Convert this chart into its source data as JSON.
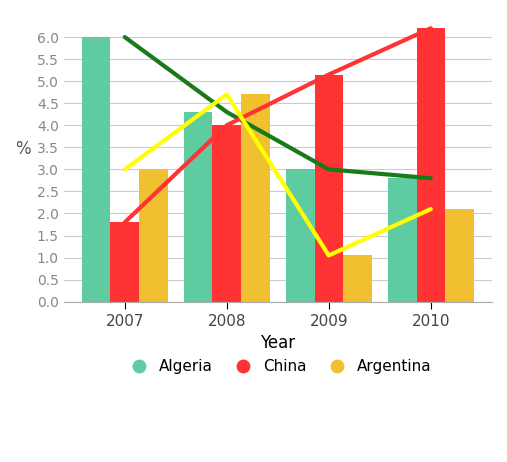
{
  "years": [
    2007,
    2008,
    2009,
    2010
  ],
  "algeria": [
    6.0,
    4.3,
    3.0,
    2.8
  ],
  "china": [
    1.8,
    4.0,
    5.15,
    6.2
  ],
  "argentina": [
    3.0,
    4.7,
    1.05,
    2.1
  ],
  "bar_color_algeria": "#5ecba1",
  "bar_color_china": "#ff3333",
  "bar_color_argentina": "#f0c030",
  "line_color_algeria": "#1a7a1a",
  "line_color_china": "#ff3333",
  "line_color_argentina": "#ffff00",
  "ylabel": "%",
  "xlabel": "Year",
  "ylim": [
    0.0,
    6.5
  ],
  "yticks": [
    0.0,
    0.5,
    1.0,
    1.5,
    2.0,
    2.5,
    3.0,
    3.5,
    4.0,
    4.5,
    5.0,
    5.5,
    6.0
  ],
  "bar_width": 0.28,
  "background_color": "#ffffff",
  "grid_color": "#cccccc",
  "legend_labels": [
    "Algeria",
    "China",
    "Argentina"
  ]
}
